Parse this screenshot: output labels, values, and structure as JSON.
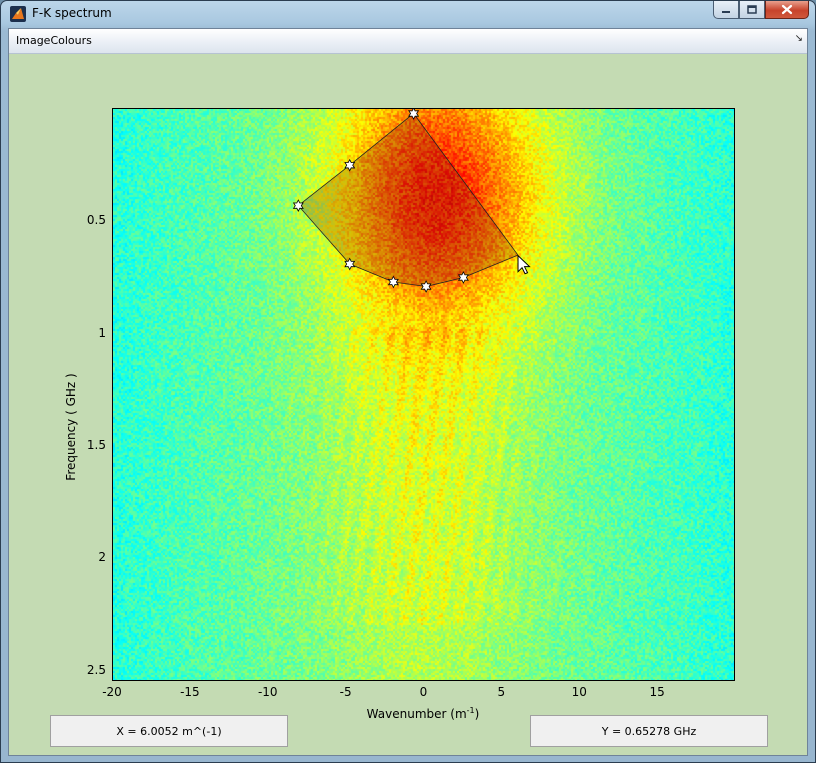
{
  "window": {
    "title": "F-K spectrum",
    "menu_item": "ImageColours"
  },
  "axes": {
    "xlabel_text": "Wavenumber (m",
    "xlabel_sup": "-1",
    "xlabel_close": ")",
    "ylabel": "Frequency ( GHz )",
    "xlim": [
      -20,
      20
    ],
    "ylim": [
      0,
      2.55
    ],
    "xticks": [
      "-20",
      "-15",
      "-10",
      "-5",
      "0",
      "5",
      "10",
      "15"
    ],
    "yticks": [
      "0.5",
      "1",
      "1.5",
      "2",
      "2.5"
    ]
  },
  "readouts": {
    "x": "X = 6.0052  m^(-1)",
    "y": "Y = 0.65278  GHz"
  },
  "chart_data": {
    "type": "heatmap",
    "title": "",
    "xlabel": "Wavenumber (m^-1)",
    "ylabel": "Frequency ( GHz )",
    "xlim": [
      -20,
      20
    ],
    "ylim": [
      0,
      2.55
    ],
    "x_ticks": [
      -20,
      -15,
      -10,
      -5,
      0,
      5,
      10,
      15
    ],
    "y_ticks": [
      0.5,
      1,
      1.5,
      2,
      2.5
    ],
    "y_reversed": true,
    "colormap": "jet",
    "polygon_selection": [
      {
        "x": -0.7,
        "y": 0.02
      },
      {
        "x": -4.8,
        "y": 0.25
      },
      {
        "x": -8.1,
        "y": 0.43
      },
      {
        "x": -4.8,
        "y": 0.69
      },
      {
        "x": -2.0,
        "y": 0.77
      },
      {
        "x": 0.1,
        "y": 0.79
      },
      {
        "x": 2.5,
        "y": 0.75
      },
      {
        "x": 6.0,
        "y": 0.65
      }
    ],
    "cursor": {
      "x": 6.0052,
      "y": 0.65278
    }
  }
}
